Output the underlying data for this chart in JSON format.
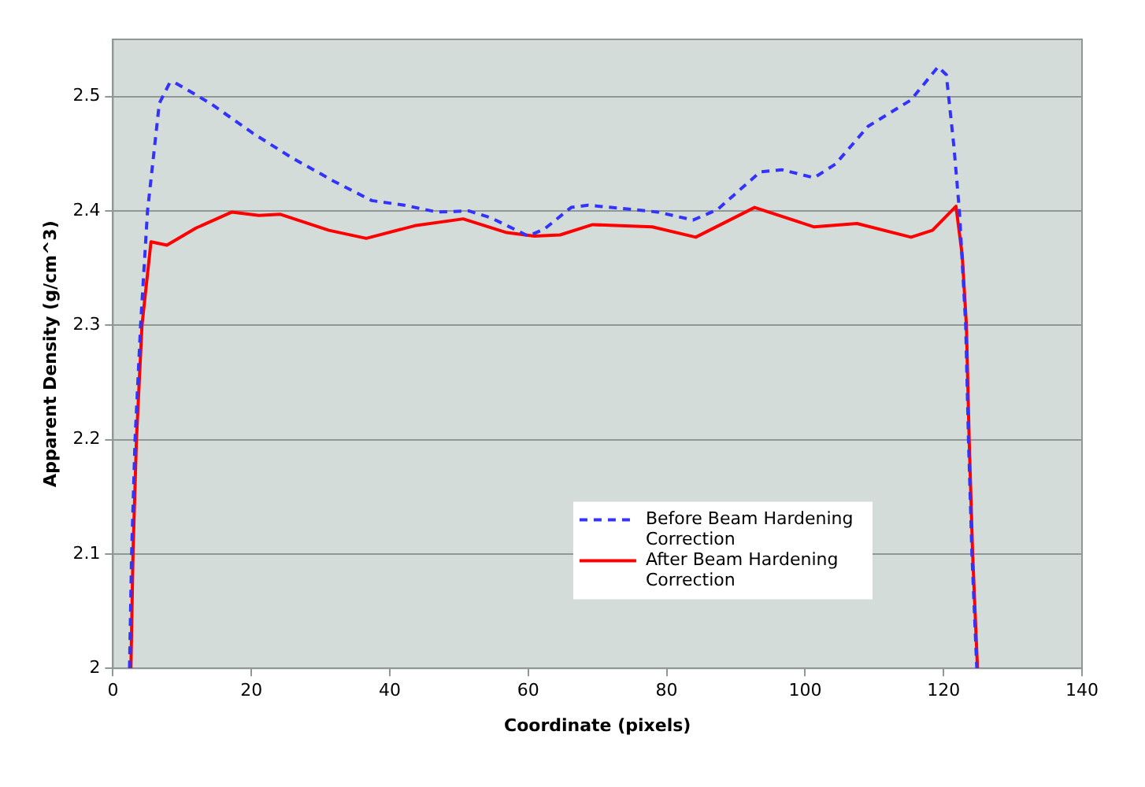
{
  "chart_data": {
    "type": "line",
    "xlabel": "Coordinate (pixels)",
    "ylabel": "Apparent Density (g/cm^3)",
    "xlim": [
      0,
      140
    ],
    "xticks": [
      0,
      20,
      40,
      60,
      80,
      100,
      120,
      140
    ],
    "ylim": [
      2,
      2.55
    ],
    "yticks": [
      2,
      2.1,
      2.2,
      2.3,
      2.4,
      2.5
    ],
    "grid": "y",
    "legend": "bottom",
    "marker": "none",
    "series": [
      {
        "name": "Before Beam Hardening Correction",
        "color": "#3333ff",
        "line_style": "dashed",
        "x": [
          2.4,
          2.7,
          3.2,
          4.0,
          5.0,
          6.7,
          8.2,
          9.0,
          14.1,
          20.2,
          25.7,
          31.9,
          37.4,
          42.1,
          46.8,
          51.4,
          54.6,
          60.0,
          62.3,
          66.2,
          68.6,
          78.7,
          83.8,
          87.3,
          93.5,
          96.6,
          101.3,
          104.4,
          109.1,
          115.3,
          119.2,
          120.4,
          121.5,
          122.3,
          123.2,
          123.6,
          124.1,
          124.8
        ],
        "values": [
          2.0,
          2.1,
          2.2,
          2.3,
          2.4,
          2.494,
          2.512,
          2.512,
          2.494,
          2.468,
          2.447,
          2.426,
          2.409,
          2.405,
          2.399,
          2.4,
          2.394,
          2.378,
          2.384,
          2.403,
          2.405,
          2.399,
          2.392,
          2.401,
          2.434,
          2.436,
          2.429,
          2.441,
          2.474,
          2.497,
          2.526,
          2.519,
          2.456,
          2.399,
          2.3,
          2.2,
          2.1,
          2.0
        ]
      },
      {
        "name": "After Beam Hardening Correction",
        "color": "#ff0000",
        "line_style": "solid",
        "x": [
          2.6,
          2.9,
          3.4,
          4.2,
          5.5,
          7.8,
          12.0,
          17.2,
          21.1,
          24.2,
          31.2,
          36.6,
          43.6,
          50.6,
          56.9,
          60.9,
          64.6,
          69.3,
          73.3,
          77.9,
          84.2,
          92.7,
          101.3,
          107.5,
          115.3,
          118.4,
          121.8,
          122.7,
          123.3,
          123.7,
          124.2,
          124.9
        ],
        "values": [
          2.0,
          2.1,
          2.2,
          2.3,
          2.373,
          2.37,
          2.385,
          2.399,
          2.396,
          2.397,
          2.383,
          2.376,
          2.387,
          2.393,
          2.381,
          2.378,
          2.379,
          2.388,
          2.387,
          2.386,
          2.377,
          2.403,
          2.386,
          2.389,
          2.377,
          2.383,
          2.404,
          2.361,
          2.3,
          2.2,
          2.1,
          2.0
        ]
      }
    ]
  }
}
